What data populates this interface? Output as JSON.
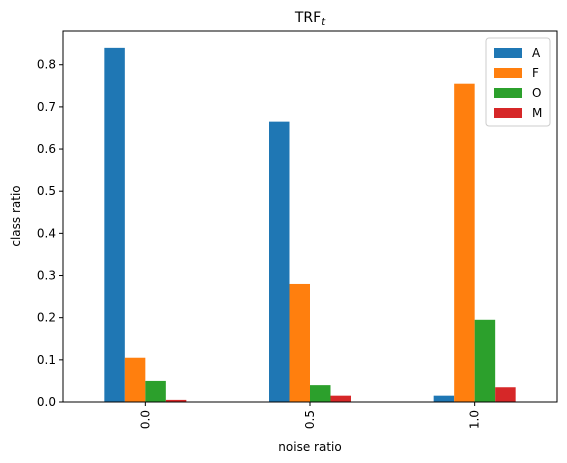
{
  "chart_data": {
    "type": "bar",
    "title": "TRF",
    "title_subscript": "t",
    "xlabel": "noise ratio",
    "ylabel": "class ratio",
    "categories": [
      "0.0",
      "0.5",
      "1.0"
    ],
    "ylim": [
      0,
      0.88
    ],
    "yticks": [
      0.0,
      0.1,
      0.2,
      0.3,
      0.4,
      0.5,
      0.6,
      0.7,
      0.8
    ],
    "ytick_labels": [
      "0.0",
      "0.1",
      "0.2",
      "0.3",
      "0.4",
      "0.5",
      "0.6",
      "0.7",
      "0.8"
    ],
    "legend_position": "top-right",
    "grid": false,
    "series": [
      {
        "name": "A",
        "color": "#1f77b4",
        "values": [
          0.84,
          0.665,
          0.015
        ]
      },
      {
        "name": "F",
        "color": "#ff7f0e",
        "values": [
          0.105,
          0.28,
          0.755
        ]
      },
      {
        "name": "O",
        "color": "#2ca02c",
        "values": [
          0.05,
          0.04,
          0.195
        ]
      },
      {
        "name": "M",
        "color": "#d62728",
        "values": [
          0.005,
          0.015,
          0.035
        ]
      }
    ]
  }
}
